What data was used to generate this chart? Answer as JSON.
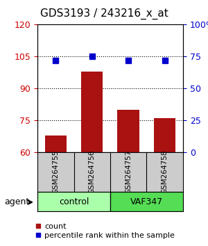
{
  "title": "GDS3193 / 243216_x_at",
  "samples": [
    "GSM264755",
    "GSM264756",
    "GSM264757",
    "GSM264758"
  ],
  "bar_values": [
    68,
    98,
    80,
    76
  ],
  "percentile_values": [
    72,
    75,
    72,
    72
  ],
  "ylim_left": [
    60,
    120
  ],
  "ylim_right": [
    0,
    100
  ],
  "yticks_left": [
    60,
    75,
    90,
    105,
    120
  ],
  "yticks_right": [
    0,
    25,
    50,
    75,
    100
  ],
  "ytick_labels_left": [
    "60",
    "75",
    "90",
    "105",
    "120"
  ],
  "ytick_labels_right": [
    "0",
    "25",
    "50",
    "75",
    "100%"
  ],
  "hline_values": [
    75,
    90,
    105
  ],
  "bar_color": "#aa1111",
  "dot_color": "#0000cc",
  "bar_width": 0.6,
  "groups": [
    {
      "label": "control",
      "indices": [
        0,
        1
      ],
      "color": "#aaffaa"
    },
    {
      "label": "VAF347",
      "indices": [
        2,
        3
      ],
      "color": "#55dd55"
    }
  ],
  "agent_label": "agent",
  "legend_count_label": "count",
  "legend_pct_label": "percentile rank within the sample",
  "background_color": "#ffffff",
  "plot_bg_color": "#ffffff",
  "sample_row_color": "#cccccc",
  "title_fontsize": 11,
  "tick_fontsize": 9,
  "legend_fontsize": 8,
  "label_fontsize": 9
}
